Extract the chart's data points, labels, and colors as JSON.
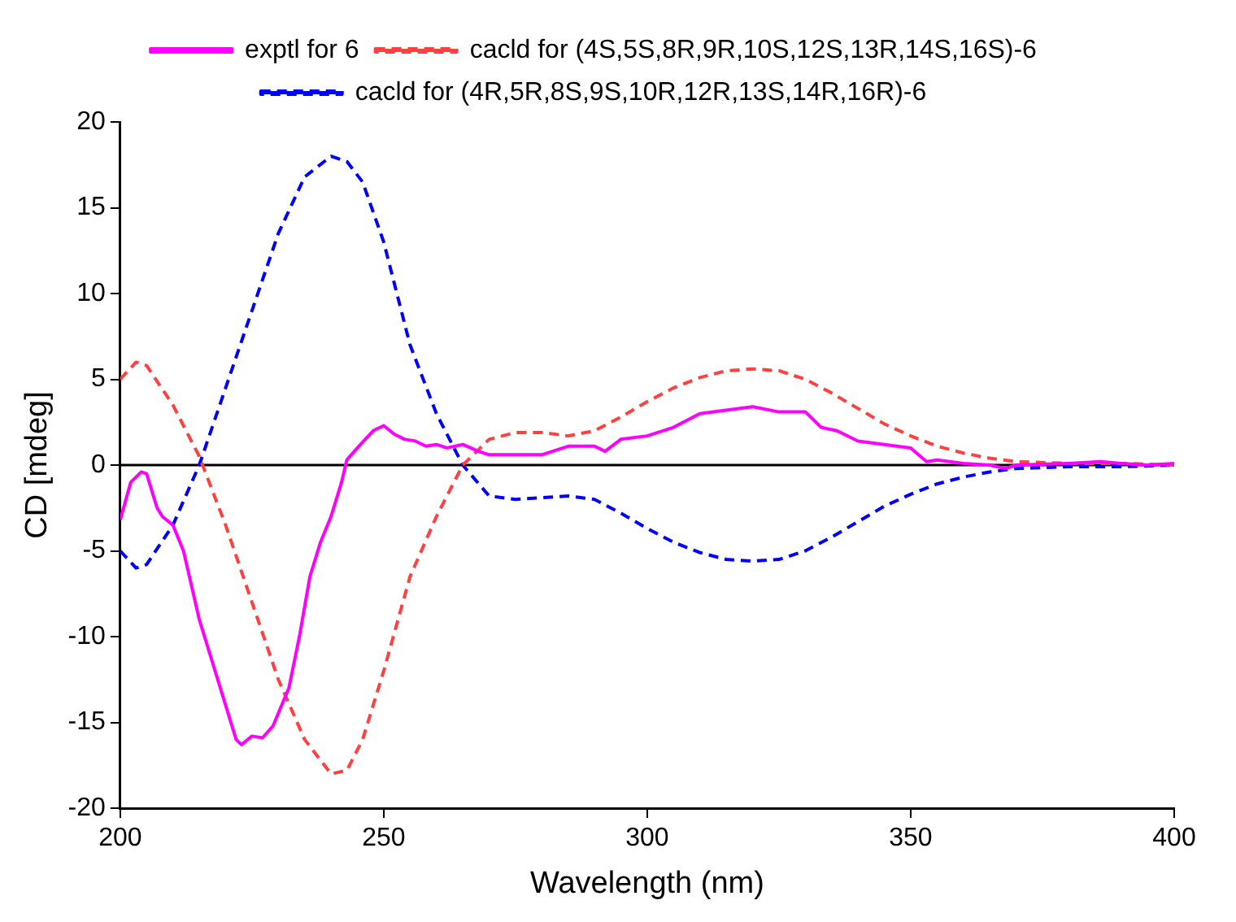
{
  "chart_data": {
    "type": "line",
    "xlabel": "Wavelength (nm)",
    "ylabel": "CD [mdeg]",
    "xlim": [
      200,
      400
    ],
    "xticks": [
      200,
      250,
      300,
      350,
      400
    ],
    "ylim": [
      -20,
      20
    ],
    "yticks": [
      -20,
      -15,
      -10,
      -5,
      0,
      5,
      10,
      15,
      20
    ],
    "grid": false,
    "legend": "top",
    "marker": "none",
    "ref_lines": [
      {
        "axis": "y",
        "value": 0,
        "color": "#000000",
        "line_style": "solid"
      }
    ],
    "series": [
      {
        "name": "exptl for 6",
        "color": "#ff00ff",
        "line_style": "solid",
        "x": [
          200,
          202,
          204,
          205,
          207,
          208,
          210,
          212,
          215,
          218,
          220,
          222,
          223,
          225,
          227,
          229,
          232,
          234,
          236,
          238,
          240,
          242,
          243,
          245,
          248,
          250,
          252,
          254,
          256,
          258,
          260,
          262,
          265,
          268,
          270,
          275,
          280,
          285,
          290,
          292,
          295,
          300,
          305,
          310,
          315,
          320,
          325,
          330,
          333,
          336,
          340,
          345,
          350,
          353,
          355,
          360,
          365,
          368,
          370,
          380,
          386,
          390,
          395,
          400
        ],
        "values": [
          -3.2,
          -1,
          -0.4,
          -0.5,
          -2.5,
          -3,
          -3.5,
          -5,
          -9,
          -12,
          -14,
          -16,
          -16.3,
          -15.8,
          -15.9,
          -15.2,
          -13,
          -10,
          -6.5,
          -4.5,
          -3,
          -1,
          0.3,
          1,
          2,
          2.3,
          1.8,
          1.5,
          1.4,
          1.1,
          1.2,
          1,
          1.2,
          0.8,
          0.6,
          0.6,
          0.6,
          1.1,
          1.1,
          0.8,
          1.5,
          1.7,
          2.2,
          3,
          3.2,
          3.4,
          3.1,
          3.1,
          2.2,
          2,
          1.4,
          1.2,
          1,
          0.2,
          0.3,
          0.1,
          0,
          -0.2,
          0,
          0.1,
          0.2,
          0.1,
          0,
          0.1
        ]
      },
      {
        "name": "cacld for (4S,5S,8R,9R,10S,12S,13R,14S,16S)-6",
        "color": "#ff4040",
        "line_style": "dashed",
        "x": [
          200,
          203,
          205,
          210,
          215,
          220,
          225,
          230,
          235,
          240,
          243,
          246,
          250,
          255,
          260,
          265,
          270,
          275,
          280,
          285,
          290,
          295,
          300,
          305,
          310,
          315,
          320,
          325,
          330,
          335,
          340,
          345,
          350,
          355,
          360,
          365,
          370,
          380,
          390,
          400
        ],
        "values": [
          5,
          6,
          5.8,
          3.5,
          0.5,
          -3.5,
          -8,
          -12.5,
          -16,
          -18,
          -17.8,
          -16,
          -12,
          -6.5,
          -3,
          0,
          1.5,
          1.9,
          1.9,
          1.7,
          2,
          2.8,
          3.7,
          4.5,
          5.1,
          5.5,
          5.6,
          5.5,
          5,
          4.2,
          3.3,
          2.4,
          1.7,
          1.1,
          0.7,
          0.4,
          0.2,
          0.1,
          0.1,
          0
        ]
      },
      {
        "name": "cacld for (4R,5R,8S,9S,10R,12R,13S,14R,16R)-6",
        "color": "#0000ff",
        "line_style": "dashed",
        "x": [
          200,
          203,
          205,
          210,
          215,
          220,
          225,
          230,
          235,
          240,
          243,
          246,
          250,
          255,
          260,
          265,
          270,
          275,
          280,
          285,
          290,
          295,
          300,
          305,
          310,
          315,
          320,
          325,
          330,
          335,
          340,
          345,
          350,
          355,
          360,
          365,
          370,
          380,
          390,
          400
        ],
        "values": [
          -5,
          -6,
          -5.8,
          -3.5,
          0,
          4.5,
          9,
          13.5,
          16.8,
          18,
          17.7,
          16.5,
          13,
          7,
          3,
          0,
          -1.8,
          -2,
          -1.9,
          -1.8,
          -2,
          -2.8,
          -3.7,
          -4.5,
          -5.1,
          -5.5,
          -5.6,
          -5.5,
          -5,
          -4.2,
          -3.3,
          -2.4,
          -1.7,
          -1.1,
          -0.7,
          -0.4,
          -0.2,
          -0.1,
          -0.1,
          0
        ]
      }
    ]
  }
}
